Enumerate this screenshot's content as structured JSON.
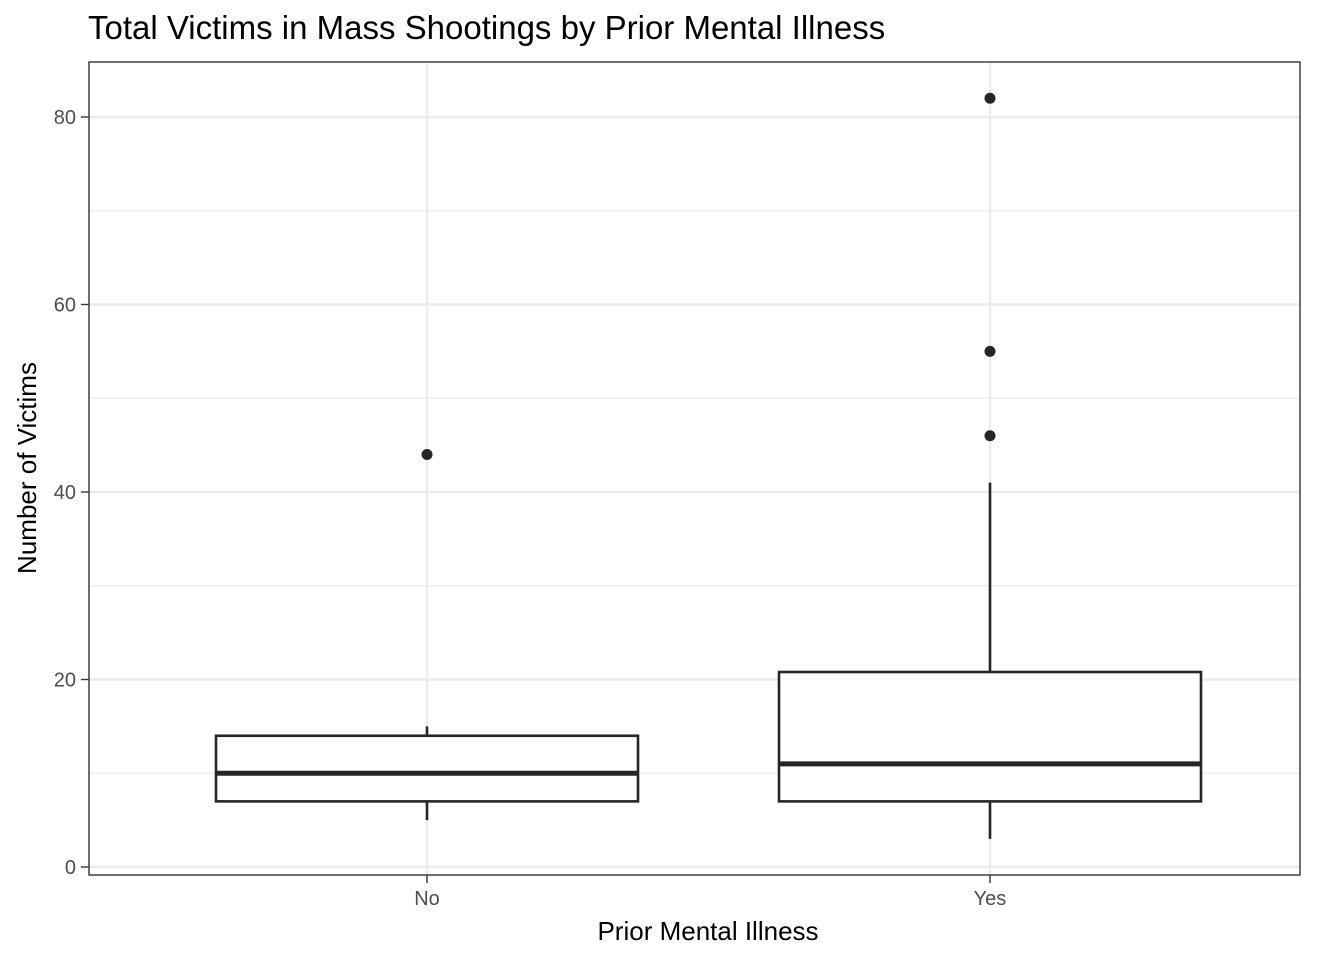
{
  "chart_data": {
    "type": "boxplot",
    "title": "Total Victims in Mass Shootings by Prior Mental Illness",
    "xlabel": "Prior Mental Illness",
    "ylabel": "Number of Victims",
    "ylim": [
      -1,
      86
    ],
    "y_ticks": [
      0,
      20,
      40,
      60,
      80
    ],
    "y_tick_labels": [
      "0",
      "20",
      "40",
      "60",
      "80"
    ],
    "y_minor_ticks": [
      10,
      30,
      50,
      70
    ],
    "grid": true,
    "categories": [
      "No",
      "Yes"
    ],
    "boxes": [
      {
        "category": "No",
        "whisker_low": 5,
        "q1": 7,
        "median": 10,
        "q3": 14,
        "whisker_high": 15,
        "outliers": [
          44
        ]
      },
      {
        "category": "Yes",
        "whisker_low": 3,
        "q1": 7,
        "median": 11,
        "q3": 20.8,
        "whisker_high": 41,
        "outliers": [
          46,
          55,
          82
        ]
      }
    ],
    "colors": {
      "box_stroke": "#262626",
      "box_fill": "#ffffff",
      "grid": "#ebebeb",
      "panel_border": "#333333",
      "tick_text": "#4d4d4d"
    }
  }
}
